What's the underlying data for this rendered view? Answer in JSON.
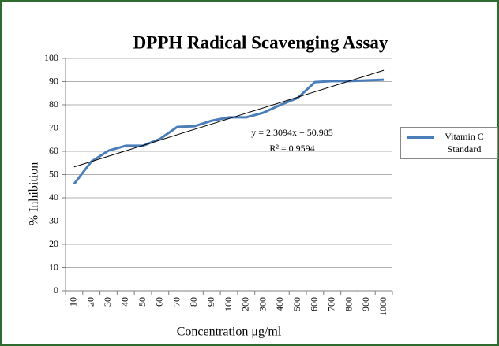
{
  "chart_data": {
    "type": "line",
    "title": "DPPH Radical Scavenging Assay",
    "x_label": "Concentration μg/ml",
    "y_label": "% Inhibition",
    "categories": [
      "10",
      "20",
      "30",
      "40",
      "50",
      "60",
      "70",
      "80",
      "90",
      "100",
      "200",
      "300",
      "400",
      "500",
      "600",
      "700",
      "800",
      "900",
      "1000"
    ],
    "series": [
      {
        "name": "Vitamin C Standard",
        "color": "#4a7ebb",
        "values": [
          46,
          55.6,
          60.3,
          62.4,
          62.4,
          65.4,
          70.5,
          70.8,
          73.2,
          74.6,
          74.6,
          76.6,
          80,
          83,
          89.8,
          90.2,
          90.2,
          90.5,
          90.8
        ]
      }
    ],
    "trendline": {
      "equation": "y = 2.3094x + 50.985",
      "r_squared": "R² = 0.9594",
      "slope": 2.3094,
      "intercept": 50.985,
      "color": "#000000"
    },
    "ylim": [
      0,
      100
    ],
    "yticks": [
      0,
      10,
      20,
      30,
      40,
      50,
      60,
      70,
      80,
      90,
      100
    ],
    "grid": true,
    "legend": "right"
  }
}
